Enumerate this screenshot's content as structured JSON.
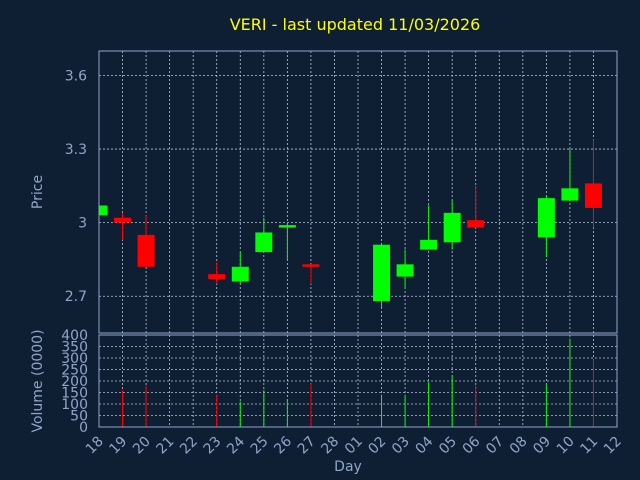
{
  "chart_data": {
    "type": "candlestick",
    "title": "VERI - last updated 11/03/2026",
    "ylabel": "Price",
    "volume_label": "Volume (0000)",
    "xlabel": "Day",
    "x_ticks": [
      "18",
      "19",
      "20",
      "21",
      "22",
      "23",
      "24",
      "25",
      "26",
      "27",
      "28",
      "01",
      "02",
      "03",
      "04",
      "05",
      "06",
      "07",
      "08",
      "09",
      "10",
      "11",
      "12"
    ],
    "price_ylim": [
      2.55,
      3.7
    ],
    "price_ticks": [
      "2.7",
      "3",
      "3.3",
      "3.6"
    ],
    "volume_ylim": [
      0,
      400
    ],
    "volume_ticks": [
      "0",
      "50",
      "100",
      "150",
      "200",
      "250",
      "300",
      "350",
      "400"
    ],
    "colors": {
      "up": "#00ff00",
      "down": "#ff0000"
    },
    "candles": [
      {
        "day": "18",
        "open": 3.03,
        "high": 3.07,
        "low": 3.03,
        "close": 3.07,
        "volume": 0
      },
      {
        "day": "19",
        "open": 3.02,
        "high": 3.04,
        "low": 2.93,
        "close": 3.0,
        "volume": 160
      },
      {
        "day": "20",
        "open": 2.95,
        "high": 3.03,
        "low": 2.82,
        "close": 2.82,
        "volume": 180
      },
      {
        "day": "23",
        "open": 2.79,
        "high": 2.84,
        "low": 2.75,
        "close": 2.77,
        "volume": 140
      },
      {
        "day": "24",
        "open": 2.76,
        "high": 2.88,
        "low": 2.75,
        "close": 2.82,
        "volume": 110
      },
      {
        "day": "25",
        "open": 2.88,
        "high": 3.02,
        "low": 2.88,
        "close": 2.96,
        "volume": 160
      },
      {
        "day": "26",
        "open": 2.98,
        "high": 3.0,
        "low": 2.85,
        "close": 2.99,
        "volume": 120
      },
      {
        "day": "27",
        "open": 2.83,
        "high": 2.83,
        "low": 2.75,
        "close": 2.82,
        "volume": 190
      },
      {
        "day": "02",
        "open": 2.68,
        "high": 2.91,
        "low": 2.65,
        "close": 2.91,
        "volume": 140
      },
      {
        "day": "03",
        "open": 2.78,
        "high": 2.89,
        "low": 2.73,
        "close": 2.83,
        "volume": 140
      },
      {
        "day": "04",
        "open": 2.89,
        "high": 3.07,
        "low": 2.89,
        "close": 2.93,
        "volume": 195
      },
      {
        "day": "05",
        "open": 2.92,
        "high": 3.09,
        "low": 2.89,
        "close": 3.04,
        "volume": 225
      },
      {
        "day": "06",
        "open": 3.01,
        "high": 3.15,
        "low": 2.98,
        "close": 2.98,
        "volume": 180
      },
      {
        "day": "09",
        "open": 2.94,
        "high": 3.11,
        "low": 2.86,
        "close": 3.1,
        "volume": 185
      },
      {
        "day": "10",
        "open": 3.09,
        "high": 3.3,
        "low": 3.09,
        "close": 3.14,
        "volume": 385
      },
      {
        "day": "11",
        "open": 3.16,
        "high": 3.34,
        "low": 2.98,
        "close": 3.06,
        "volume": 295
      }
    ]
  }
}
